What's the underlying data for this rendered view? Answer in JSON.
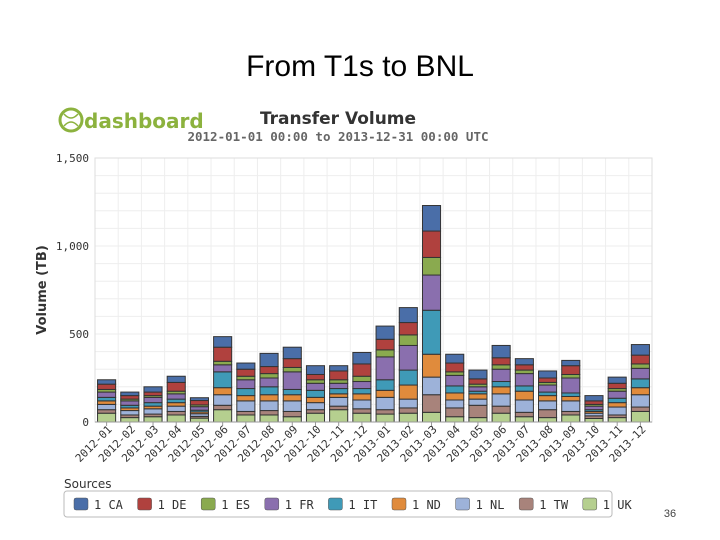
{
  "slide": {
    "title": "From T1s to BNL",
    "page_number": "36"
  },
  "logo": {
    "text": "dashboard"
  },
  "chart_data": {
    "type": "bar",
    "stacked": true,
    "title": "Transfer Volume",
    "subtitle": "2012-01-01 00:00 to 2013-12-31 00:00 UTC",
    "xlabel": "",
    "ylabel": "Volume (TB)",
    "ylim": [
      0,
      1500
    ],
    "yticks": [
      "0",
      "500",
      "1,000",
      "1,500"
    ],
    "ytick_values": [
      0,
      500,
      1000,
      1500
    ],
    "grid": true,
    "legend_title": "Sources",
    "legend_position": "bottom",
    "categories": [
      "2012-01",
      "2012-02",
      "2012-03",
      "2012-04",
      "2012-05",
      "2012-06",
      "2012-07",
      "2012-08",
      "2012-09",
      "2012-10",
      "2012-11",
      "2012-12",
      "2013-01",
      "2013-02",
      "2013-03",
      "2013-04",
      "2013-05",
      "2013-06",
      "2013-07",
      "2013-08",
      "2013-09",
      "2013-10",
      "2013-11",
      "2013-12"
    ],
    "series": [
      {
        "name": "1 UK",
        "color": "#b5cf8f",
        "values": [
          50,
          25,
          30,
          40,
          22,
          70,
          40,
          40,
          30,
          50,
          70,
          50,
          45,
          50,
          55,
          30,
          25,
          50,
          30,
          25,
          40,
          20,
          25,
          60
        ]
      },
      {
        "name": "1 TW",
        "color": "#a8837b",
        "values": [
          20,
          15,
          15,
          20,
          10,
          25,
          20,
          25,
          30,
          20,
          20,
          25,
          25,
          30,
          100,
          50,
          70,
          40,
          25,
          45,
          20,
          15,
          15,
          25
        ]
      },
      {
        "name": "1 NL",
        "color": "#9db2d9",
        "values": [
          30,
          25,
          30,
          30,
          15,
          60,
          60,
          55,
          60,
          40,
          50,
          50,
          70,
          50,
          100,
          45,
          35,
          70,
          70,
          50,
          60,
          15,
          45,
          70
        ]
      },
      {
        "name": "1 ND",
        "color": "#e08b3c",
        "values": [
          20,
          15,
          15,
          20,
          10,
          40,
          30,
          35,
          35,
          30,
          20,
          35,
          40,
          80,
          130,
          40,
          30,
          40,
          50,
          30,
          25,
          10,
          25,
          40
        ]
      },
      {
        "name": "1 IT",
        "color": "#3f9ab7",
        "values": [
          20,
          15,
          20,
          20,
          10,
          90,
          40,
          45,
          30,
          40,
          30,
          30,
          60,
          85,
          250,
          40,
          15,
          30,
          30,
          20,
          20,
          10,
          25,
          50
        ]
      },
      {
        "name": "1 FR",
        "color": "#8a6fae",
        "values": [
          30,
          25,
          30,
          30,
          20,
          40,
          50,
          50,
          100,
          40,
          30,
          40,
          130,
          140,
          200,
          60,
          25,
          70,
          70,
          40,
          85,
          20,
          40,
          60
        ]
      },
      {
        "name": "1 ES",
        "color": "#8aaa4f",
        "values": [
          15,
          10,
          10,
          15,
          10,
          20,
          20,
          25,
          25,
          20,
          20,
          30,
          40,
          60,
          100,
          20,
          15,
          25,
          20,
          15,
          20,
          10,
          15,
          25
        ]
      },
      {
        "name": "1 DE",
        "color": "#b0413e",
        "values": [
          30,
          20,
          20,
          50,
          25,
          80,
          40,
          40,
          50,
          30,
          50,
          70,
          60,
          70,
          150,
          50,
          30,
          40,
          30,
          25,
          50,
          20,
          30,
          50
        ]
      },
      {
        "name": "1 CA",
        "color": "#4a6ea8",
        "values": [
          25,
          20,
          30,
          35,
          16,
          60,
          35,
          75,
          65,
          50,
          30,
          65,
          75,
          85,
          145,
          50,
          50,
          70,
          35,
          40,
          30,
          30,
          35,
          60
        ]
      }
    ],
    "legend_order": [
      "1 CA",
      "1 DE",
      "1 ES",
      "1 FR",
      "1 IT",
      "1 ND",
      "1 NL",
      "1 TW",
      "1 UK"
    ]
  }
}
